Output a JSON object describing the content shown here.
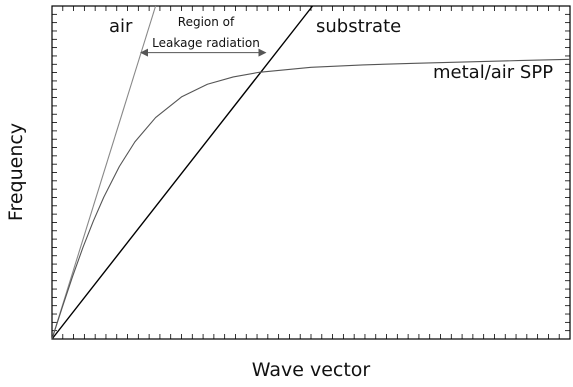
{
  "chart_data": {
    "type": "line",
    "title": "",
    "xlabel": "Wave vector",
    "ylabel": "Frequency",
    "xlim": [
      0,
      100
    ],
    "ylim": [
      0,
      100
    ],
    "grid": false,
    "ticks": {
      "x_count": 48,
      "y_count": 40
    },
    "series": [
      {
        "name": "air",
        "color": "#888888",
        "x": [
          0,
          20
        ],
        "y": [
          0,
          100
        ]
      },
      {
        "name": "substrate",
        "color": "#000000",
        "x": [
          0,
          50.3
        ],
        "y": [
          0,
          100
        ]
      },
      {
        "name": "metal/air SPP",
        "color": "#555555",
        "x": [
          0,
          2,
          4,
          6,
          8,
          10,
          13,
          16,
          20,
          25,
          30,
          35,
          40,
          50,
          60,
          70,
          80,
          90,
          100
        ],
        "y": [
          0,
          9.6,
          18.9,
          27.6,
          35.5,
          42.6,
          51.8,
          59.2,
          66.5,
          72.7,
          76.5,
          78.7,
          80.1,
          81.6,
          82.3,
          82.8,
          83.2,
          83.6,
          84.0
        ]
      }
    ],
    "annotations": [
      {
        "text": "air",
        "series": "air"
      },
      {
        "text": "substrate",
        "series": "substrate"
      },
      {
        "text": "metal/air SPP",
        "series": "metal/air SPP"
      },
      {
        "text": "Region of",
        "arrow_from_x": 16.8,
        "arrow_to_x": 41.6,
        "arrow_y": 86
      },
      {
        "text": "Leakage radiation"
      }
    ]
  }
}
